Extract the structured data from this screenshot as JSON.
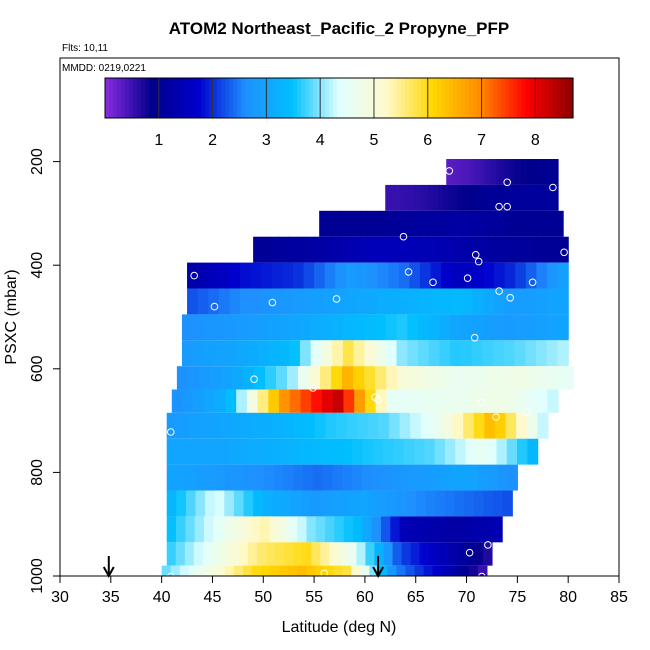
{
  "chart_data": {
    "type": "heatmap",
    "title": "ATOM2 Northeast_Pacific_2 Propyne_PFP",
    "flights_label": "Flts: 10,11",
    "date_label": "MMDD: 0219,0221",
    "xlabel": "Latitude (deg N)",
    "ylabel": "PSXC (mbar)",
    "xlim": [
      30,
      85
    ],
    "ylim": [
      1000,
      0
    ],
    "x_ticks": [
      "30",
      "35",
      "40",
      "45",
      "50",
      "55",
      "60",
      "65",
      "70",
      "75",
      "80",
      "85"
    ],
    "y_ticks": [
      "200",
      "400",
      "600",
      "800",
      "1000"
    ],
    "colorbar": {
      "min": 0,
      "max": 8.7,
      "ticks": [
        "1",
        "2",
        "3",
        "4",
        "5",
        "6",
        "7",
        "8"
      ],
      "colors": [
        "#8a2be2",
        "#00008b",
        "#0000cd",
        "#1e90ff",
        "#00bfff",
        "#e0ffff",
        "#fffacd",
        "#ffd700",
        "#ff8c00",
        "#ff0000",
        "#8b0000"
      ]
    },
    "curtain_rows": [
      {
        "p": 220,
        "lat0": 68.0,
        "lat1": 79.0,
        "vals": [
          0.3,
          0.4,
          0.6,
          0.8,
          0.9,
          1.0
        ]
      },
      {
        "p": 270,
        "lat0": 62.0,
        "lat1": 79.0,
        "vals": [
          0.5,
          0.6,
          0.8,
          1.0,
          1.1,
          1.1
        ]
      },
      {
        "p": 320,
        "lat0": 55.5,
        "lat1": 79.5,
        "vals": [
          1.0,
          1.0,
          1.1,
          1.2,
          1.0,
          1.0
        ]
      },
      {
        "p": 370,
        "lat0": 49.0,
        "lat1": 80.0,
        "vals": [
          1.0,
          1.2,
          1.5,
          1.4,
          1.1,
          1.0
        ]
      },
      {
        "p": 420,
        "lat0": 42.5,
        "lat1": 80.0,
        "vals": [
          1.2,
          1.8,
          2.0,
          2.8,
          2.4,
          1.5,
          2.0,
          3.0
        ]
      },
      {
        "p": 470,
        "lat0": 42.5,
        "lat1": 80.0,
        "vals": [
          2.2,
          2.6,
          2.8,
          3.0,
          3.2,
          3.4,
          2.8,
          3.0
        ]
      },
      {
        "p": 520,
        "lat0": 42.0,
        "lat1": 80.0,
        "vals": [
          2.6,
          2.8,
          3.0,
          3.3,
          3.6,
          3.0,
          2.8,
          3.0
        ]
      },
      {
        "p": 570,
        "lat0": 42.0,
        "lat1": 80.0,
        "vals": [
          2.8,
          3.0,
          3.4,
          5.8,
          4.0,
          3.6,
          3.8,
          4.2
        ]
      },
      {
        "p": 620,
        "lat0": 41.5,
        "lat1": 80.5,
        "vals": [
          2.6,
          3.0,
          4.0,
          6.5,
          5.0,
          4.6,
          4.8,
          4.5
        ]
      },
      {
        "p": 660,
        "lat0": 41.0,
        "lat1": 79.0,
        "vals": [
          2.6,
          3.2,
          6.8,
          8.3,
          4.5,
          4.6,
          4.8,
          4.2
        ]
      },
      {
        "p": 710,
        "lat0": 40.5,
        "lat1": 78.0,
        "vals": [
          2.8,
          3.0,
          3.2,
          3.6,
          3.8,
          4.6,
          6.5,
          4.0
        ]
      },
      {
        "p": 760,
        "lat0": 40.5,
        "lat1": 77.0,
        "vals": [
          3.0,
          3.0,
          3.2,
          3.4,
          3.6,
          3.8,
          4.6,
          3.2
        ]
      },
      {
        "p": 810,
        "lat0": 40.5,
        "lat1": 75.0,
        "vals": [
          3.0,
          2.8,
          2.6,
          2.4,
          2.6,
          2.8,
          3.0,
          2.6
        ]
      },
      {
        "p": 860,
        "lat0": 40.5,
        "lat1": 74.5,
        "vals": [
          3.2,
          4.4,
          3.2,
          2.8,
          3.0,
          2.6,
          2.4,
          2.2
        ]
      },
      {
        "p": 910,
        "lat0": 40.5,
        "lat1": 73.5,
        "vals": [
          3.4,
          4.4,
          5.4,
          4.0,
          3.4,
          1.4,
          1.2,
          1.4
        ]
      },
      {
        "p": 960,
        "lat0": 40.5,
        "lat1": 72.5,
        "vals": [
          3.6,
          4.6,
          5.6,
          6.0,
          4.6,
          2.2,
          1.4,
          0.6
        ]
      },
      {
        "p": 1000,
        "lat0": 40.0,
        "lat1": 72.0,
        "vals": [
          3.8,
          4.8,
          6.0,
          6.4,
          5.8,
          2.6,
          1.6,
          0.4
        ]
      }
    ],
    "sample_points": [
      {
        "lat": 68.3,
        "p": 218
      },
      {
        "lat": 74.0,
        "p": 240
      },
      {
        "lat": 78.5,
        "p": 250
      },
      {
        "lat": 73.2,
        "p": 287
      },
      {
        "lat": 74.0,
        "p": 287
      },
      {
        "lat": 63.8,
        "p": 345
      },
      {
        "lat": 79.6,
        "p": 375
      },
      {
        "lat": 70.9,
        "p": 380
      },
      {
        "lat": 71.2,
        "p": 393
      },
      {
        "lat": 64.3,
        "p": 413
      },
      {
        "lat": 43.2,
        "p": 420
      },
      {
        "lat": 70.1,
        "p": 425
      },
      {
        "lat": 66.7,
        "p": 433
      },
      {
        "lat": 76.5,
        "p": 433
      },
      {
        "lat": 73.2,
        "p": 450
      },
      {
        "lat": 74.3,
        "p": 463
      },
      {
        "lat": 57.2,
        "p": 465
      },
      {
        "lat": 50.9,
        "p": 472
      },
      {
        "lat": 45.2,
        "p": 480
      },
      {
        "lat": 70.8,
        "p": 540
      },
      {
        "lat": 49.1,
        "p": 620
      },
      {
        "lat": 54.9,
        "p": 637
      },
      {
        "lat": 61.0,
        "p": 655
      },
      {
        "lat": 61.3,
        "p": 660
      },
      {
        "lat": 71.5,
        "p": 665
      },
      {
        "lat": 75.9,
        "p": 683
      },
      {
        "lat": 72.9,
        "p": 693
      },
      {
        "lat": 40.9,
        "p": 722
      },
      {
        "lat": 72.1,
        "p": 940
      },
      {
        "lat": 70.3,
        "p": 955
      },
      {
        "lat": 56.0,
        "p": 995
      },
      {
        "lat": 40.9,
        "p": 1001
      },
      {
        "lat": 44.4,
        "p": 1001
      },
      {
        "lat": 71.5,
        "p": 1001
      }
    ],
    "arrows": [
      {
        "lat": 34.8
      },
      {
        "lat": 61.3
      }
    ]
  }
}
